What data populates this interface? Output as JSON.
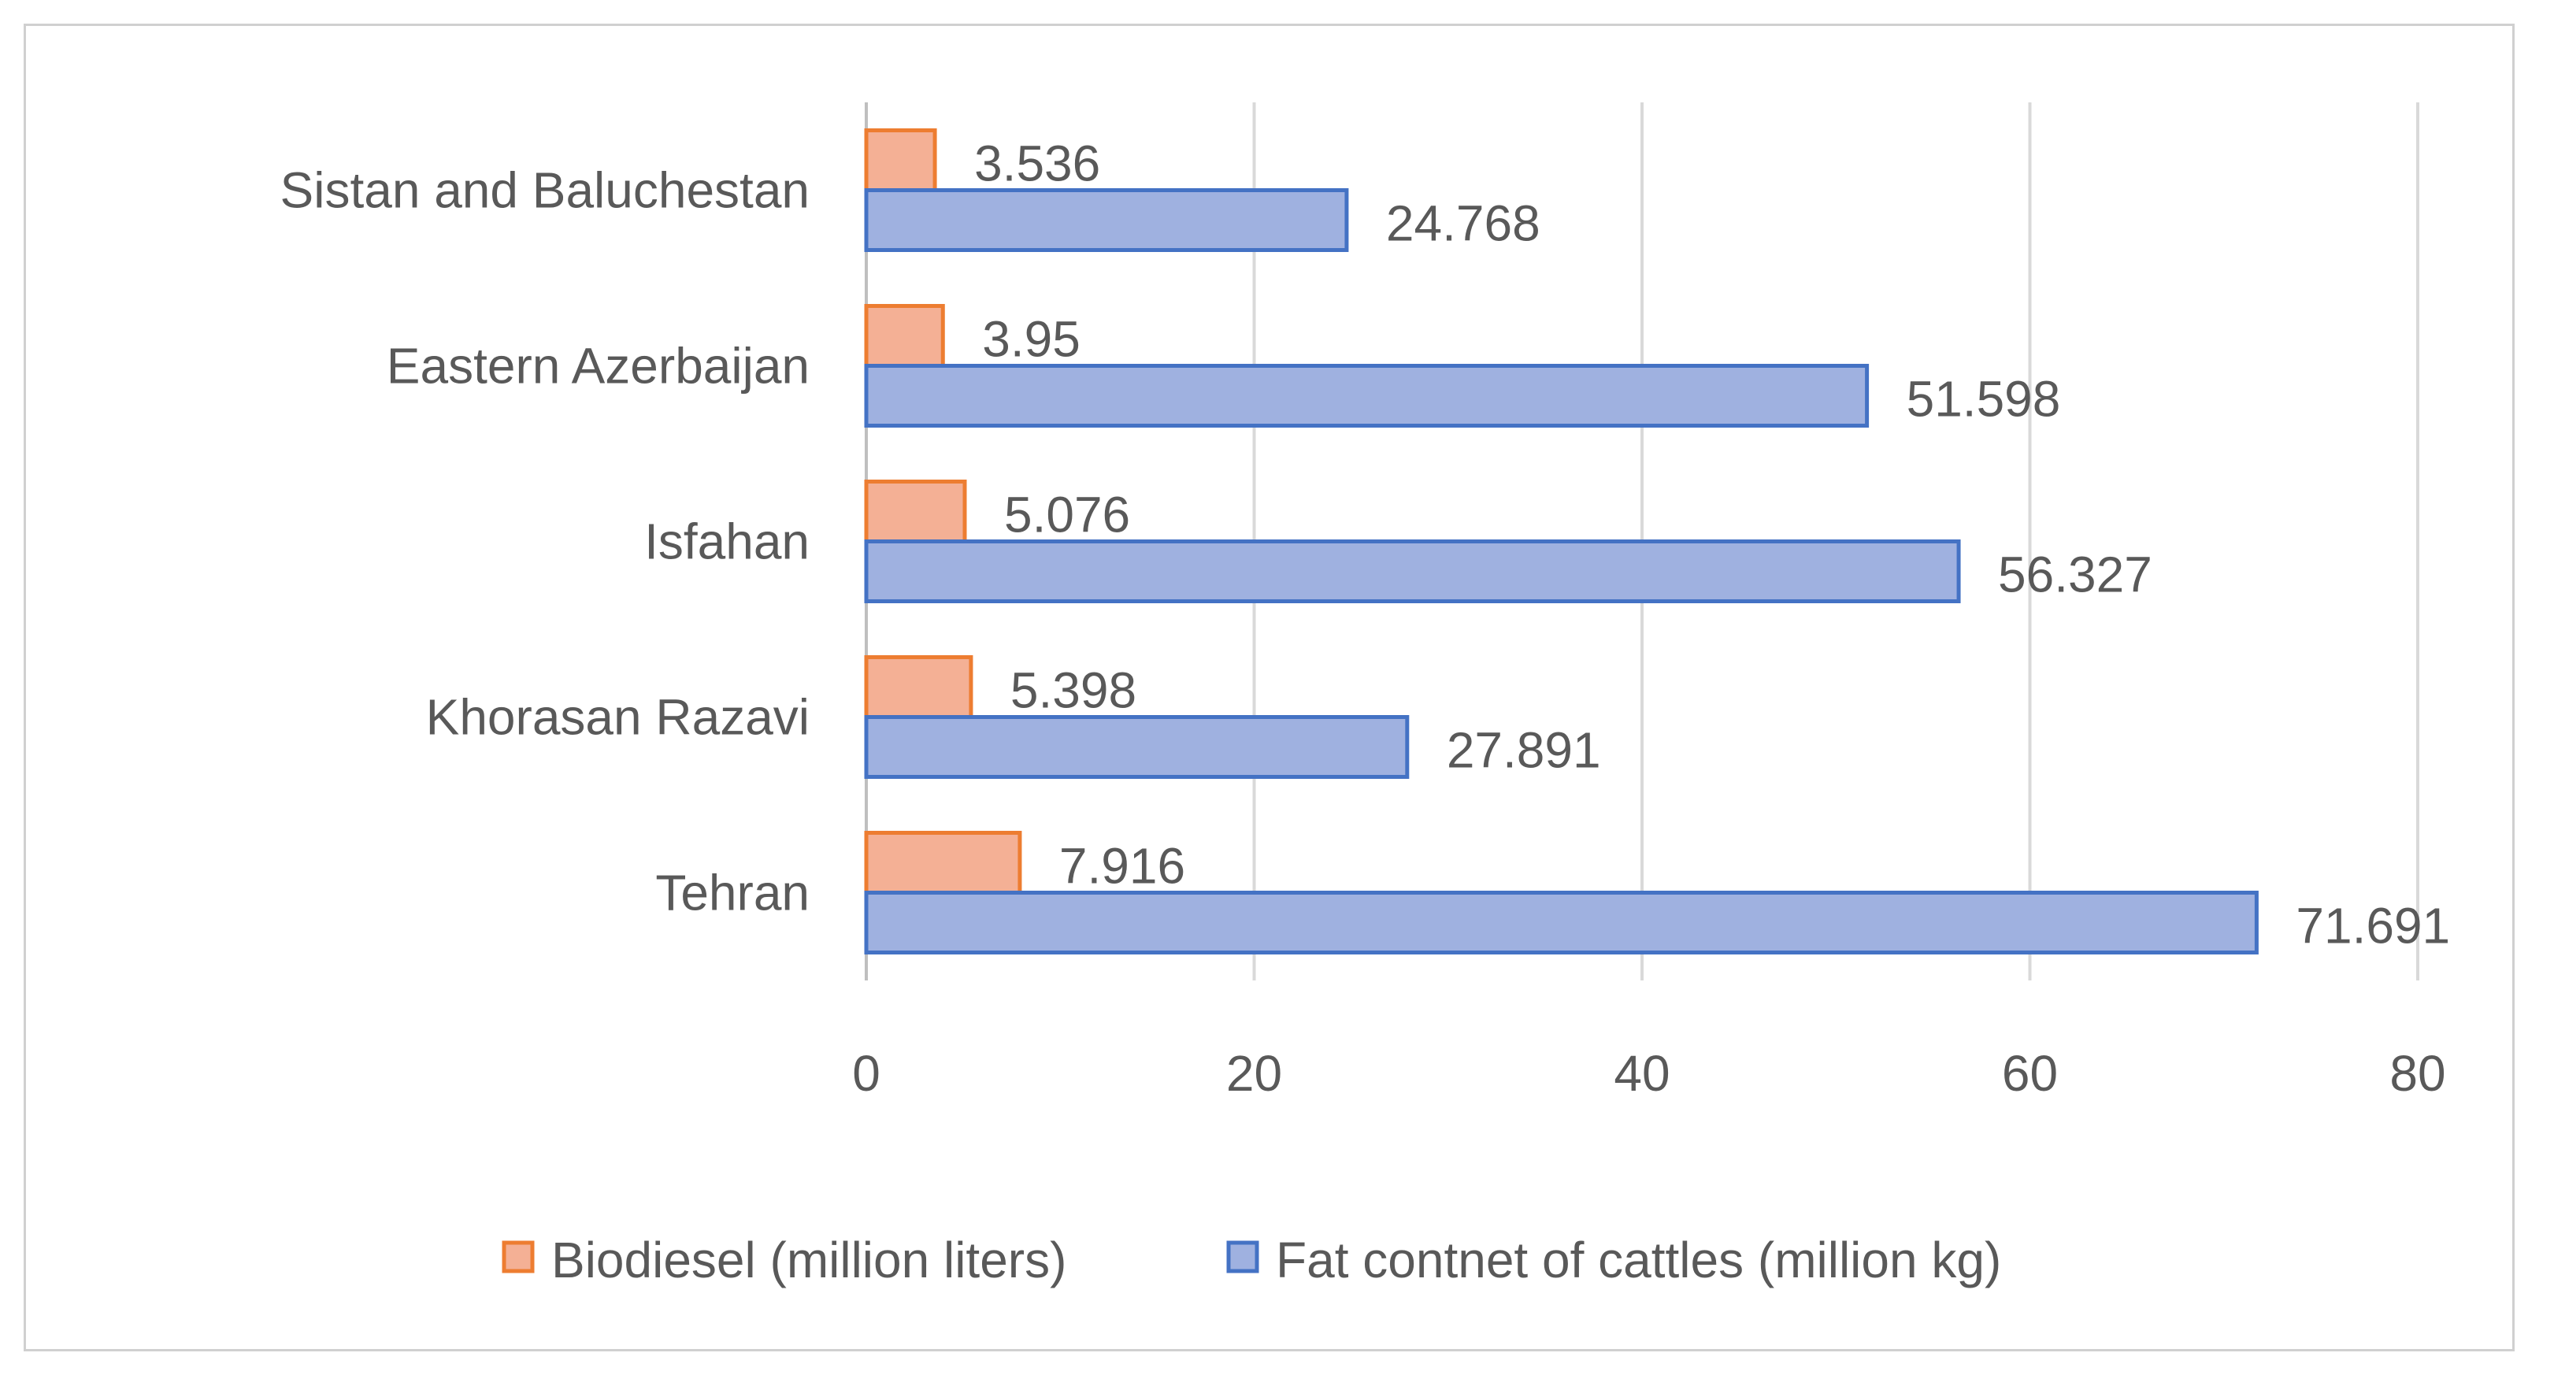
{
  "chart_data": {
    "type": "bar",
    "orientation": "horizontal",
    "categories": [
      "Sistan and Baluchestan",
      "Eastern Azerbaijan",
      "Isfahan",
      "Khorasan Razavi",
      "Tehran"
    ],
    "series": [
      {
        "name": "Biodiesel (million liters)",
        "values": [
          3.536,
          3.95,
          5.076,
          5.398,
          7.916
        ],
        "labels": [
          "3.536",
          "3.95",
          "5.076",
          "5.398",
          "7.916"
        ],
        "fill": "#f4b095",
        "stroke": "#ed7d31"
      },
      {
        "name": "Fat contnet of cattles (million kg)",
        "values": [
          24.768,
          51.598,
          56.327,
          27.891,
          71.691
        ],
        "labels": [
          "24.768",
          "51.598",
          "56.327",
          "27.891",
          "71.691"
        ],
        "fill": "#9fb1e0",
        "stroke": "#4472c4"
      }
    ],
    "xlim": [
      0,
      80
    ],
    "xticks": [
      "0",
      "20",
      "40",
      "60",
      "80"
    ],
    "grid": true,
    "legend_position": "bottom",
    "gridline_color": "#d9d9d9",
    "axis_color": "#bfbfbf"
  }
}
